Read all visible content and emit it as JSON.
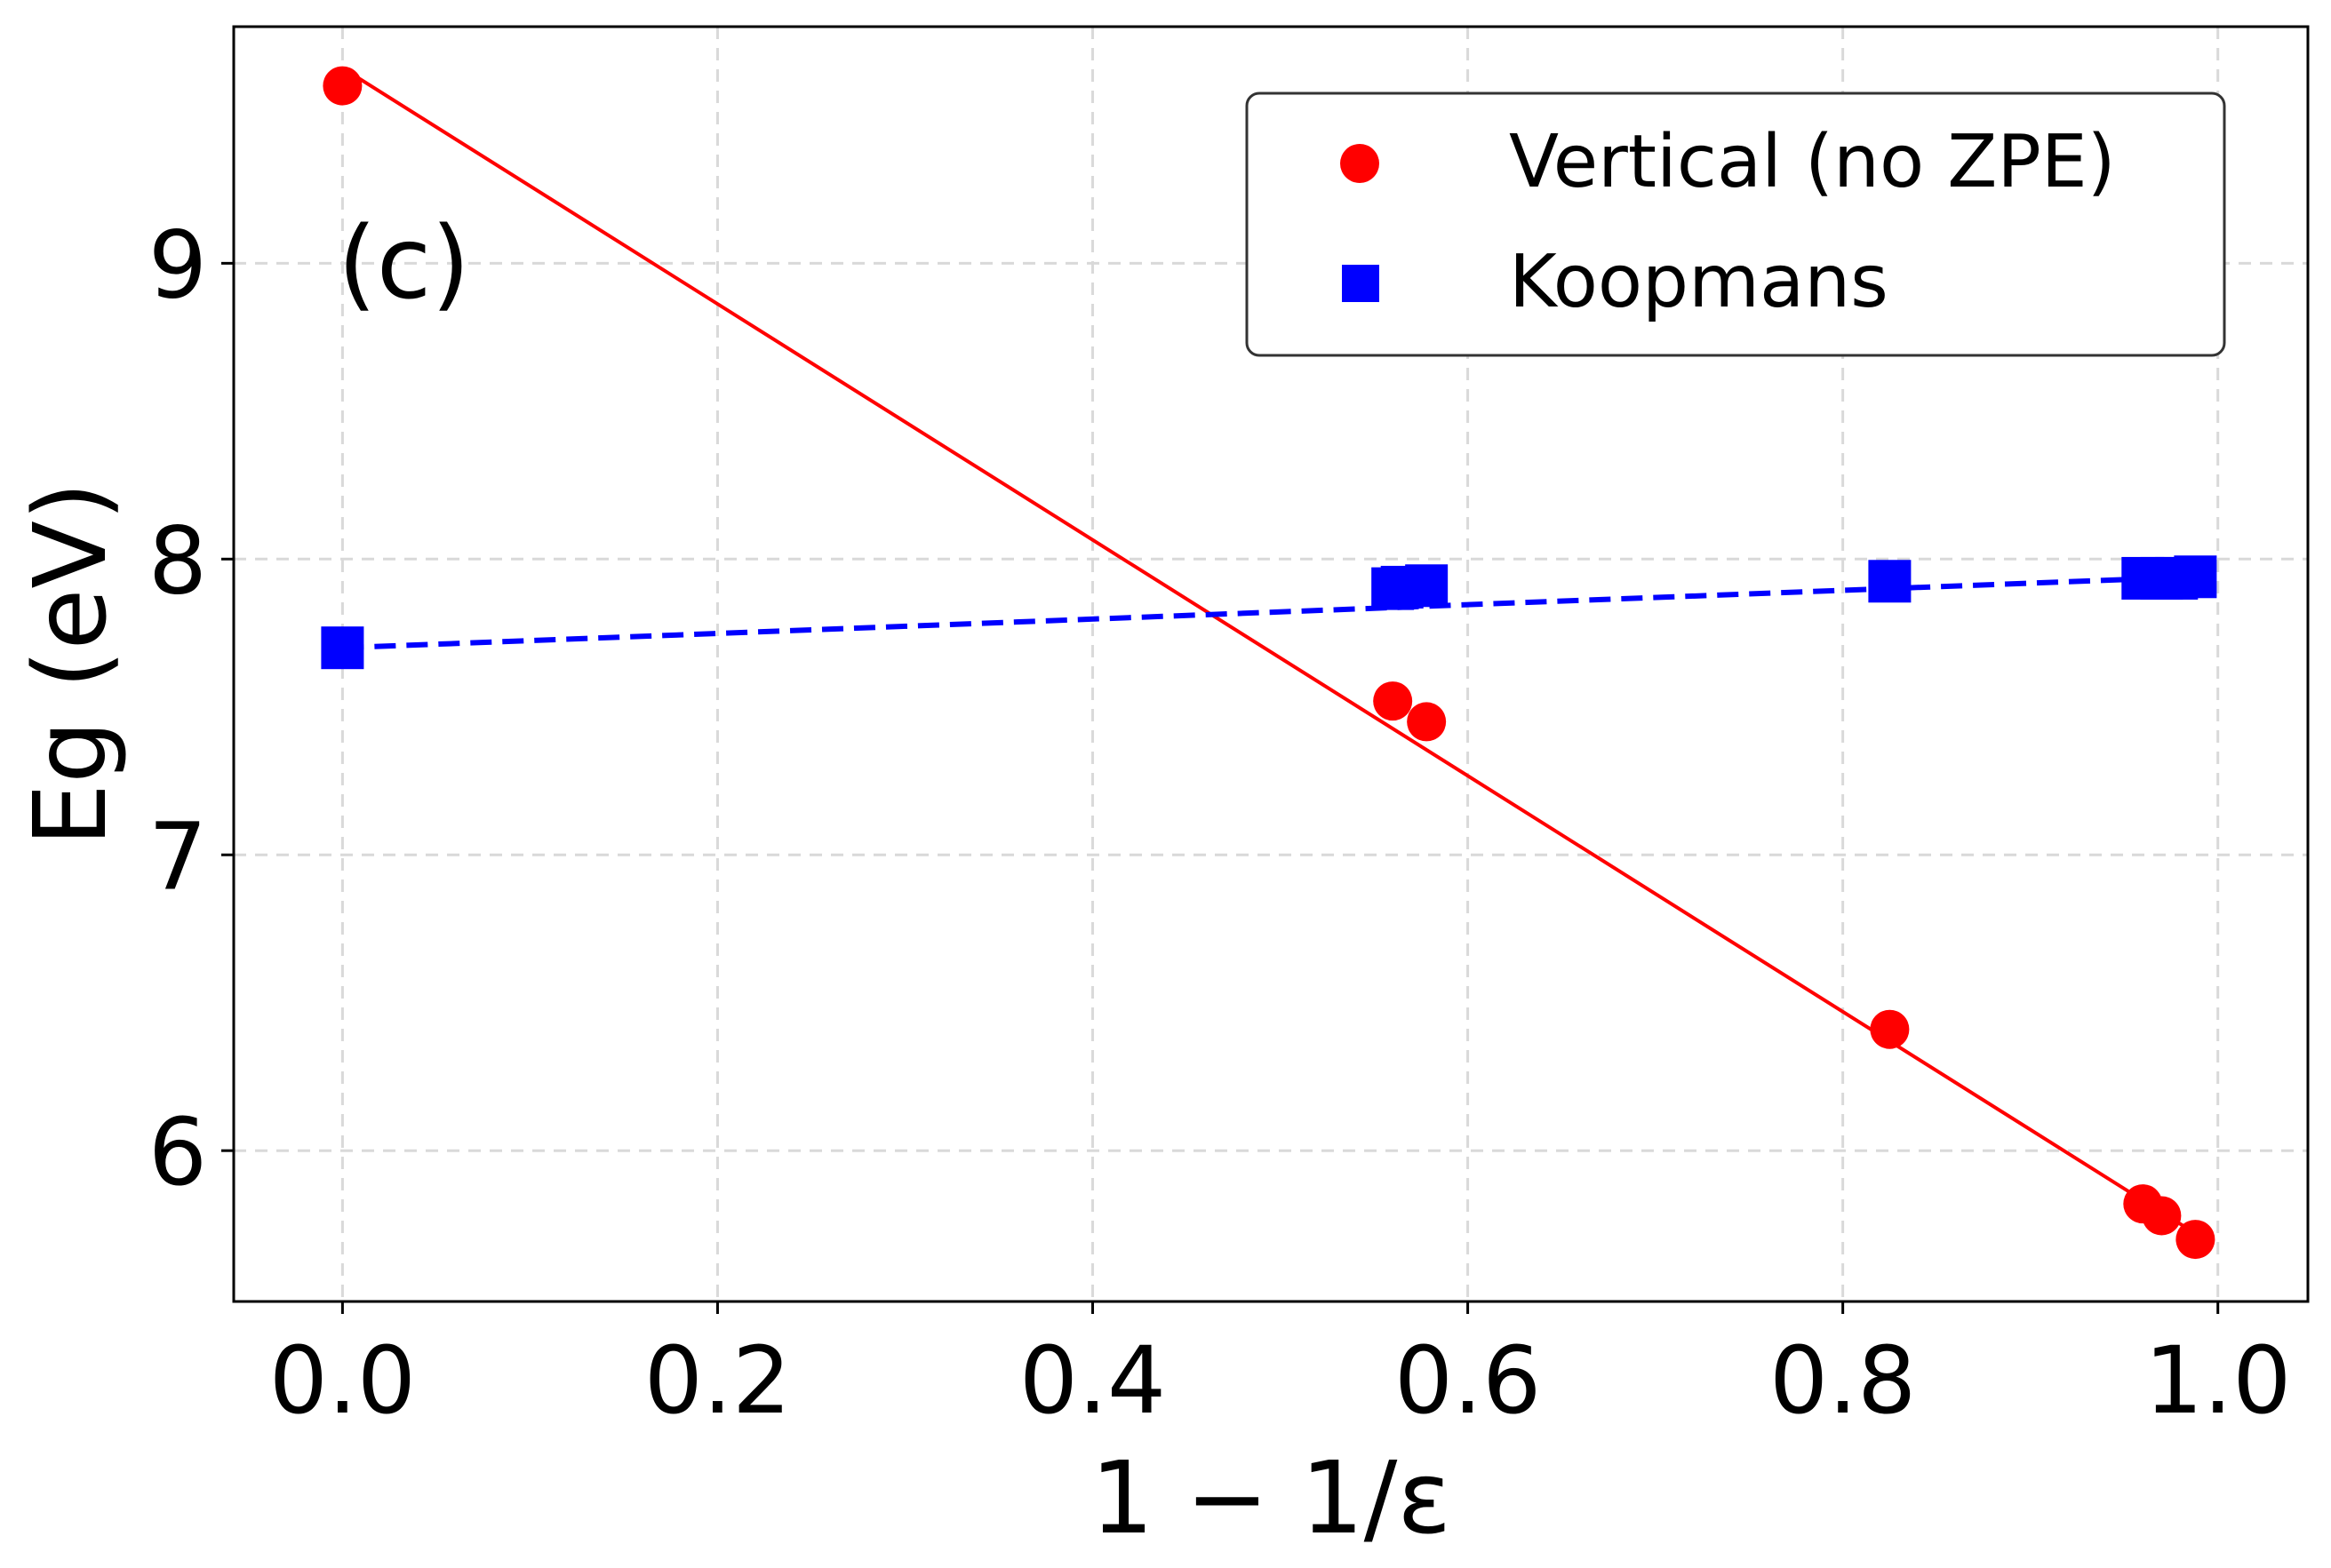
{
  "chart_data": {
    "type": "scatter",
    "panel_label": "(c)",
    "xlabel": "1 − 1/ε",
    "ylabel": "Eg (eV)",
    "xlim": [
      -0.058,
      1.048
    ],
    "ylim": [
      5.49,
      9.8
    ],
    "xticks": [
      0.0,
      0.2,
      0.4,
      0.6,
      0.8,
      1.0
    ],
    "xtick_labels": [
      "0.0",
      "0.2",
      "0.4",
      "0.6",
      "0.8",
      "1.0"
    ],
    "yticks": [
      6,
      7,
      8,
      9
    ],
    "ytick_labels": [
      "6",
      "7",
      "8",
      "9"
    ],
    "grid": true,
    "legend_position": "top-right",
    "series": [
      {
        "name": "Vertical (no ZPE)",
        "marker": "circle",
        "color": "#ff0000",
        "points": [
          {
            "x": 0.0,
            "y": 9.6
          },
          {
            "x": 0.56,
            "y": 7.52
          },
          {
            "x": 0.578,
            "y": 7.45
          },
          {
            "x": 0.825,
            "y": 6.41
          },
          {
            "x": 0.96,
            "y": 5.82
          },
          {
            "x": 0.97,
            "y": 5.78
          },
          {
            "x": 0.988,
            "y": 5.7
          }
        ],
        "fit": {
          "type": "linear",
          "line_style": "solid",
          "x": [
            0.0,
            0.988
          ],
          "y": [
            9.66,
            5.72
          ]
        }
      },
      {
        "name": "Koopmans",
        "marker": "square",
        "color": "#0000ff",
        "points": [
          {
            "x": 0.0,
            "y": 7.7
          },
          {
            "x": 0.56,
            "y": 7.9
          },
          {
            "x": 0.565,
            "y": 7.905
          },
          {
            "x": 0.578,
            "y": 7.91
          },
          {
            "x": 0.825,
            "y": 7.925
          },
          {
            "x": 0.96,
            "y": 7.935
          },
          {
            "x": 0.97,
            "y": 7.935
          },
          {
            "x": 0.978,
            "y": 7.935
          },
          {
            "x": 0.988,
            "y": 7.94
          }
        ],
        "fit": {
          "type": "linear",
          "line_style": "dashed",
          "x": [
            0.0,
            0.988
          ],
          "y": [
            7.7,
            7.94
          ]
        }
      }
    ]
  }
}
